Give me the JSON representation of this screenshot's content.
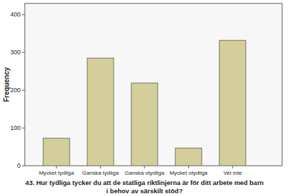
{
  "chart_data": {
    "type": "bar",
    "xlabel": "43. Hur tydliga tycker du att de statliga riktlinjerna är för ditt arbete med barn i behov av särskilt stöd?",
    "ylabel": "Frequency",
    "categories": [
      "Mycket tydliga",
      "Ganska tydliga",
      "Ganska otydliga",
      "Mycket otydliga",
      "Vet inte"
    ],
    "values": [
      73,
      285,
      219,
      47,
      332
    ],
    "color": "#d3ce9a",
    "ylim": [
      0,
      430
    ],
    "yticks": [
      0,
      100,
      200,
      300,
      400
    ],
    "grid": false
  }
}
